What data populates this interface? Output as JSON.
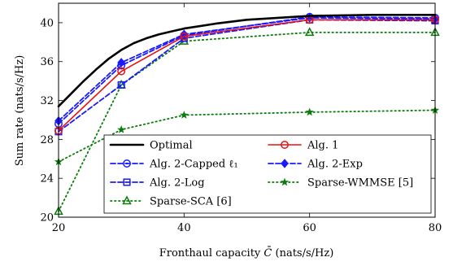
{
  "chart_data": {
    "type": "line",
    "title": "",
    "xlabel": "Fronthaul capacity",
    "xlabel_symbol": "C̄",
    "xlabel_unit": "(nats/s/Hz)",
    "ylabel": "Sum rate (nats/s/Hz)",
    "xlim": [
      20,
      80
    ],
    "ylim": [
      20,
      42
    ],
    "x_ticks": [
      20,
      40,
      60,
      80
    ],
    "y_ticks": [
      20,
      24,
      28,
      32,
      36,
      40
    ],
    "grid": false,
    "legend_position": "bottom-right",
    "series": [
      {
        "name": "Optimal",
        "color": "#000000",
        "style": "solid",
        "marker": "none",
        "width": 2.6,
        "x": [
          20,
          22,
          24,
          26,
          28,
          30,
          32,
          34,
          36,
          38,
          40,
          45,
          50,
          55,
          60,
          70,
          80
        ],
        "y": [
          31.4,
          32.7,
          34.0,
          35.2,
          36.3,
          37.2,
          37.9,
          38.4,
          38.8,
          39.1,
          39.4,
          39.9,
          40.3,
          40.5,
          40.7,
          40.8,
          40.8
        ]
      },
      {
        "name": "Alg. 1",
        "color": "#e8100f",
        "style": "solid",
        "marker": "circle",
        "width": 1.6,
        "x": [
          20,
          30,
          40,
          60,
          80
        ],
        "y": [
          28.9,
          35.0,
          38.6,
          40.3,
          40.3
        ]
      },
      {
        "name": "Alg. 2-Capped ℓ₁",
        "color": "#1a1aff",
        "style": "dashed",
        "marker": "circle-dot",
        "width": 1.8,
        "x": [
          20,
          30,
          40,
          60,
          80
        ],
        "y": [
          29.6,
          35.6,
          38.7,
          40.6,
          40.5
        ]
      },
      {
        "name": "Alg. 2-Exp",
        "color": "#1a1aff",
        "style": "dashed",
        "marker": "diamond",
        "width": 1.8,
        "x": [
          20,
          30,
          40,
          60,
          80
        ],
        "y": [
          29.9,
          35.9,
          38.8,
          40.5,
          40.4
        ]
      },
      {
        "name": "Alg. 2-Log",
        "color": "#1a1aff",
        "style": "dashed",
        "marker": "square",
        "width": 1.8,
        "x": [
          20,
          30,
          40,
          60,
          80
        ],
        "y": [
          28.8,
          33.6,
          38.4,
          40.3,
          40.2
        ]
      },
      {
        "name": "Sparse-WMMSE [5]",
        "color": "#0a7a0a",
        "style": "dotted",
        "marker": "star",
        "width": 1.8,
        "x": [
          20,
          30,
          40,
          60,
          80
        ],
        "y": [
          25.7,
          29.0,
          30.5,
          30.8,
          31.0
        ]
      },
      {
        "name": "Sparse-SCA [6]",
        "color": "#0a7a0a",
        "style": "dotted",
        "marker": "triangle",
        "width": 1.8,
        "x": [
          20,
          30,
          40,
          60,
          80
        ],
        "y": [
          20.6,
          33.6,
          38.1,
          39.0,
          39.0
        ]
      }
    ]
  }
}
